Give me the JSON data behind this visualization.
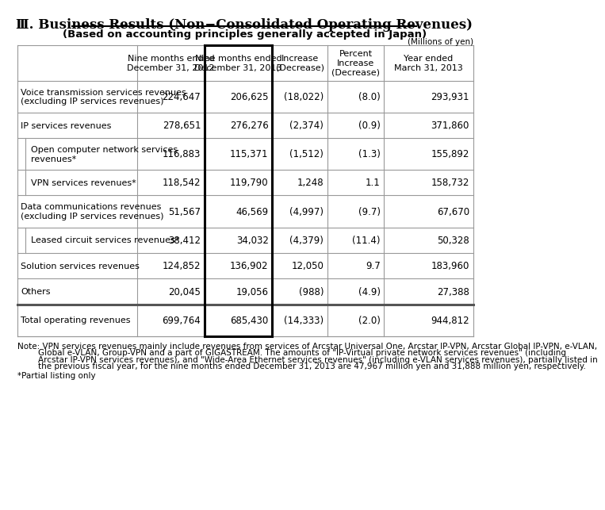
{
  "title": "Ⅲ. Business Results (Non−Consolidated Operating Revenues)",
  "subtitle": "(Based on accounting principles generally accepted in Japan)",
  "millions_label": "(Millions of yen)",
  "col_headers": [
    "Nine months ended\nDecember 31, 2012",
    "Nine months ended\nDecember 31, 2013",
    "Increase\n(Decrease)",
    "Percent\nIncrease\n(Decrease)",
    "Year ended\nMarch 31, 2013"
  ],
  "rows": [
    {
      "label": "Voice transmission services revenues\n(excluding IP services revenues)",
      "values": [
        "224,647",
        "206,625",
        "(18,022)",
        "(8.0)",
        "293,931"
      ],
      "indent": false,
      "thick_top": false,
      "sub_indent_left": false
    },
    {
      "label": "IP services revenues",
      "values": [
        "278,651",
        "276,276",
        "(2,374)",
        "(0.9)",
        "371,860"
      ],
      "indent": false,
      "thick_top": false,
      "sub_indent_left": false
    },
    {
      "label": "Open computer network services\nrevenues*",
      "values": [
        "116,883",
        "115,371",
        "(1,512)",
        "(1.3)",
        "155,892"
      ],
      "indent": true,
      "thick_top": false,
      "sub_indent_left": true
    },
    {
      "label": "VPN services revenues*",
      "values": [
        "118,542",
        "119,790",
        "1,248",
        "1.1",
        "158,732"
      ],
      "indent": true,
      "thick_top": false,
      "sub_indent_left": true
    },
    {
      "label": "Data communications revenues\n(excluding IP services revenues)",
      "values": [
        "51,567",
        "46,569",
        "(4,997)",
        "(9.7)",
        "67,670"
      ],
      "indent": false,
      "thick_top": false,
      "sub_indent_left": false
    },
    {
      "label": "Leased circuit services revenues*",
      "values": [
        "38,412",
        "34,032",
        "(4,379)",
        "(11.4)",
        "50,328"
      ],
      "indent": true,
      "thick_top": false,
      "sub_indent_left": true
    },
    {
      "label": "Solution services revenues",
      "values": [
        "124,852",
        "136,902",
        "12,050",
        "9.7",
        "183,960"
      ],
      "indent": false,
      "thick_top": false,
      "sub_indent_left": false
    },
    {
      "label": "Others",
      "values": [
        "20,045",
        "19,056",
        "(988)",
        "(4.9)",
        "27,388"
      ],
      "indent": false,
      "thick_top": false,
      "sub_indent_left": false
    },
    {
      "label": "Total operating revenues",
      "values": [
        "699,764",
        "685,430",
        "(14,333)",
        "(2.0)",
        "944,812"
      ],
      "indent": false,
      "thick_top": true,
      "sub_indent_left": false
    }
  ],
  "note_line1": "Note: VPN services revenues mainly include revenues from services of Arcstar Universal One, Arcstar IP-VPN, Arcstar Global IP-VPN, e-VLAN,",
  "note_line2": "        Global e-VLAN, Group-VPN and a part of GIGASTREAM. The amounts of \"IP-Virtual private network services revenues\" (including",
  "note_line3": "        Arcstar IP-VPN services revenues), and \"Wide-Area Ethernet services revenues\" (including e-VLAN services revenues), partially listed in",
  "note_line4": "        the previous fiscal year, for the nine months ended December 31, 2013 are 47,967 million yen and 31,888 million yen, respectively.",
  "footnote": "*Partial listing only",
  "bg_color": "#ffffff",
  "grid_color": "#999999",
  "thick_color": "#555555",
  "title_fontsize": 12,
  "subtitle_fontsize": 9.5,
  "header_fontsize": 8,
  "data_fontsize": 8.5,
  "note_fontsize": 7.5
}
